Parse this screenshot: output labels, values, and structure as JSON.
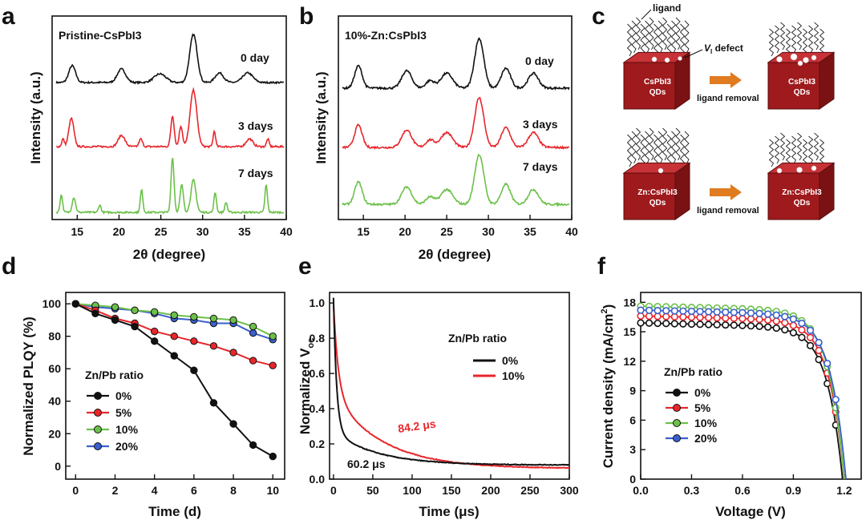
{
  "chart_data": [
    {
      "panel": "a",
      "type": "line",
      "title": "Pristine-CsPbI3",
      "xlabel": "2θ (degree)",
      "ylabel": "Intensity (a.u.)",
      "xlim": [
        12,
        40
      ],
      "xticks": [
        15,
        20,
        25,
        30,
        35,
        40
      ],
      "colors": [
        "#111111",
        "#e8262b",
        "#6cc04a"
      ],
      "series": [
        {
          "name": "0 day",
          "peaks": [
            [
              14.4,
              0.35,
              0.4
            ],
            [
              20.3,
              0.28,
              0.5
            ],
            [
              24.9,
              0.18,
              0.7
            ],
            [
              28.9,
              1.0,
              0.45
            ],
            [
              32.0,
              0.2,
              0.5
            ],
            [
              35.4,
              0.2,
              0.6
            ]
          ]
        },
        {
          "name": "3 days",
          "peaks": [
            [
              14.3,
              0.55,
              0.3
            ],
            [
              13.3,
              0.15,
              0.15
            ],
            [
              20.3,
              0.22,
              0.4
            ],
            [
              22.6,
              0.15,
              0.2
            ],
            [
              26.4,
              0.6,
              0.2
            ],
            [
              27.4,
              0.4,
              0.2
            ],
            [
              28.9,
              1.1,
              0.4
            ],
            [
              31.4,
              0.3,
              0.15
            ],
            [
              35.6,
              0.15,
              0.4
            ],
            [
              37.8,
              0.15,
              0.15
            ]
          ]
        },
        {
          "name": "7 days",
          "peaks": [
            [
              13.1,
              0.35,
              0.15
            ],
            [
              14.6,
              0.3,
              0.2
            ],
            [
              17.7,
              0.15,
              0.15
            ],
            [
              22.7,
              0.45,
              0.15
            ],
            [
              26.4,
              1.1,
              0.18
            ],
            [
              27.5,
              0.55,
              0.2
            ],
            [
              28.9,
              0.65,
              0.3
            ],
            [
              31.5,
              0.4,
              0.15
            ],
            [
              32.8,
              0.2,
              0.15
            ],
            [
              37.6,
              0.55,
              0.15
            ]
          ]
        }
      ]
    },
    {
      "panel": "b",
      "type": "line",
      "title": "10%-Zn:CsPbI3",
      "xlabel": "2θ (degree)",
      "ylabel": "Intensity (a.u.)",
      "xlim": [
        12,
        40
      ],
      "xticks": [
        15,
        20,
        25,
        30,
        35,
        40
      ],
      "colors": [
        "#111111",
        "#e8262b",
        "#6cc04a"
      ],
      "series": [
        {
          "name": "0 day",
          "peaks": [
            [
              14.4,
              0.45,
              0.45
            ],
            [
              20.2,
              0.35,
              0.6
            ],
            [
              23.0,
              0.15,
              0.5
            ],
            [
              25.0,
              0.3,
              0.7
            ],
            [
              28.9,
              1.0,
              0.55
            ],
            [
              32.1,
              0.4,
              0.55
            ],
            [
              35.4,
              0.3,
              0.6
            ]
          ]
        },
        {
          "name": "3 days",
          "peaks": [
            [
              14.4,
              0.45,
              0.45
            ],
            [
              20.2,
              0.35,
              0.6
            ],
            [
              23.0,
              0.15,
              0.5
            ],
            [
              25.0,
              0.3,
              0.7
            ],
            [
              28.9,
              1.0,
              0.55
            ],
            [
              32.1,
              0.4,
              0.55
            ],
            [
              35.4,
              0.3,
              0.6
            ]
          ]
        },
        {
          "name": "7 days",
          "peaks": [
            [
              14.4,
              0.45,
              0.45
            ],
            [
              20.2,
              0.35,
              0.6
            ],
            [
              23.0,
              0.15,
              0.5
            ],
            [
              25.0,
              0.3,
              0.7
            ],
            [
              28.9,
              1.0,
              0.55
            ],
            [
              32.1,
              0.4,
              0.55
            ],
            [
              35.4,
              0.3,
              0.6
            ]
          ]
        }
      ]
    },
    {
      "panel": "c",
      "type": "diagram",
      "labels": {
        "ligand": "ligand",
        "defect": "V",
        "defect_sub": "I",
        "defect_suffix": " defect",
        "removal": "ligand removal",
        "cspbi3": "CsPbI3",
        "zncspbi3": "Zn:CsPbI3",
        "qds": "QDs"
      },
      "colors": {
        "cube": "#9e1a1c",
        "arrow": "#e07b1f"
      }
    },
    {
      "panel": "d",
      "type": "line",
      "xlabel": "Time (d)",
      "ylabel": "Normalized PLQY (%)",
      "xlim": [
        -0.5,
        10.6
      ],
      "ylim": [
        -8,
        107
      ],
      "xticks": [
        0,
        2,
        4,
        6,
        8,
        10
      ],
      "yticks": [
        0,
        20,
        40,
        60,
        80,
        100
      ],
      "legend_title": "Zn/Pb ratio",
      "x": [
        0,
        1,
        2,
        3,
        4,
        5,
        6,
        7,
        8,
        9,
        10
      ],
      "series": [
        {
          "name": "0%",
          "color": "#111111",
          "values": [
            100,
            94,
            90,
            86,
            77,
            68,
            59,
            39,
            26,
            13,
            6
          ]
        },
        {
          "name": "5%",
          "color": "#e8262b",
          "values": [
            100,
            96,
            91,
            88,
            83,
            80,
            77,
            74,
            70,
            65,
            62
          ]
        },
        {
          "name": "10%",
          "color": "#6cc04a",
          "values": [
            100,
            99,
            98,
            96,
            95,
            93,
            92,
            91,
            90,
            86,
            80
          ]
        },
        {
          "name": "20%",
          "color": "#3a5fcd",
          "values": [
            100,
            98,
            97,
            96,
            94,
            91,
            90,
            88,
            88,
            82,
            78
          ]
        }
      ]
    },
    {
      "panel": "e",
      "type": "line",
      "xlabel": "Time (μs)",
      "ylabel": "Normalized V",
      "ylabel_sub": "oc",
      "xlim": [
        -5,
        300
      ],
      "ylim": [
        0,
        1.06
      ],
      "xticks": [
        0,
        50,
        100,
        150,
        200,
        250,
        300
      ],
      "yticks": [
        0.0,
        0.2,
        0.4,
        0.6,
        0.8,
        1.0
      ],
      "legend_title": "Zn/Pb ratio",
      "series": [
        {
          "name": "0%",
          "color": "#111111",
          "lifetime": "60.2 μs"
        },
        {
          "name": "10%",
          "color": "#e8262b",
          "lifetime": "84.2 μs"
        }
      ]
    },
    {
      "panel": "f",
      "type": "line",
      "xlabel": "Voltage (V)",
      "ylabel": "Current density (mA/cm",
      "ylabel_sup": "2",
      "ylabel_end": ")",
      "xlim": [
        0,
        1.3
      ],
      "ylim": [
        0,
        19
      ],
      "xticks": [
        0.0,
        0.3,
        0.6,
        0.9,
        1.2
      ],
      "yticks": [
        0,
        3,
        6,
        9,
        12,
        15,
        18
      ],
      "legend_title": "Zn/Pb ratio",
      "series": [
        {
          "name": "0%",
          "color": "#111111",
          "jsc": 15.9,
          "voc": 1.19
        },
        {
          "name": "5%",
          "color": "#e8262b",
          "jsc": 16.6,
          "voc": 1.2
        },
        {
          "name": "10%",
          "color": "#6cc04a",
          "jsc": 17.6,
          "voc": 1.2
        },
        {
          "name": "20%",
          "color": "#3a5fcd",
          "jsc": 17.2,
          "voc": 1.21
        }
      ]
    }
  ],
  "panel_letters": [
    "a",
    "b",
    "c",
    "d",
    "e",
    "f"
  ],
  "tick_labels_f": [
    "0.0",
    "0.3",
    "0.6",
    "0.9",
    "1.2"
  ],
  "tick_labels_e_y": [
    "0.0",
    "0.2",
    "0.4",
    "0.6",
    "0.8",
    "1.0"
  ]
}
